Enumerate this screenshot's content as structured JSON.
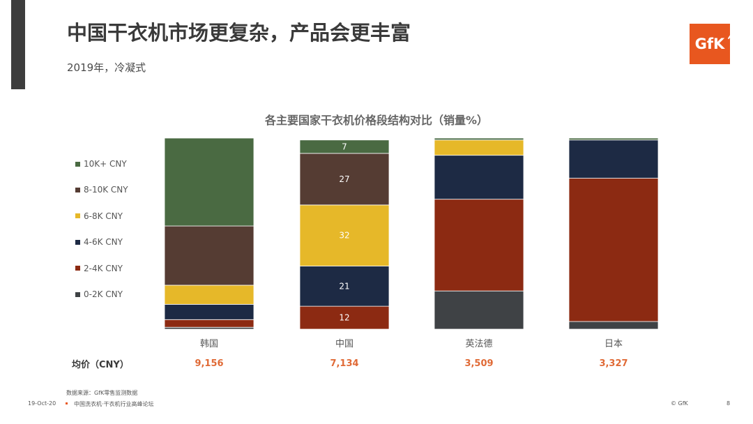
{
  "slide": {
    "title": "中国干衣机市场更复杂，产品会更丰富",
    "subtitle": "2019年，冷凝式",
    "logo_text": "GfK",
    "footer": {
      "source": "数据来源：GfK零售监测数据",
      "date": "19-Oct-20",
      "event": "中国洗衣机·干衣机行业高峰论坛",
      "copyright": "© GfK",
      "page": "8"
    },
    "colors": {
      "accent_bar": "#3d3d3d",
      "brand": "#e8571f",
      "avg_price": "#e06a36"
    }
  },
  "chart_data": {
    "type": "bar",
    "stacked": true,
    "title": "各主要国家干衣机价格段结构对比（销量%）",
    "categories": [
      "韩国",
      "中国",
      "英法德",
      "日本"
    ],
    "ylim": [
      0,
      100
    ],
    "legend_position": "left",
    "series": [
      {
        "name": "0-2K CNY",
        "color": "#3f4245",
        "values": [
          1,
          0,
          20,
          4
        ],
        "labels": [
          "",
          "",
          "",
          ""
        ]
      },
      {
        "name": "2-4K CNY",
        "color": "#8c2a12",
        "values": [
          4,
          12,
          48,
          75
        ],
        "labels": [
          "",
          "12",
          "",
          ""
        ]
      },
      {
        "name": "4-6K CNY",
        "color": "#1d2a44",
        "values": [
          8,
          21,
          23,
          20
        ],
        "labels": [
          "",
          "21",
          "",
          ""
        ]
      },
      {
        "name": "6-8K CNY",
        "color": "#e6b829",
        "values": [
          10,
          32,
          8,
          0
        ],
        "labels": [
          "",
          "32",
          "",
          ""
        ]
      },
      {
        "name": "8-10K CNY",
        "color": "#553c33",
        "values": [
          31,
          27,
          0,
          0
        ],
        "labels": [
          "",
          "27",
          "",
          ""
        ]
      },
      {
        "name": "10K+ CNY",
        "color": "#4a6a42",
        "values": [
          46,
          7,
          1,
          1
        ],
        "labels": [
          "",
          "7",
          "",
          ""
        ]
      }
    ],
    "average_price": {
      "label": "均价（CNY）",
      "values": [
        "9,156",
        "7,134",
        "3,509",
        "3,327"
      ]
    }
  }
}
